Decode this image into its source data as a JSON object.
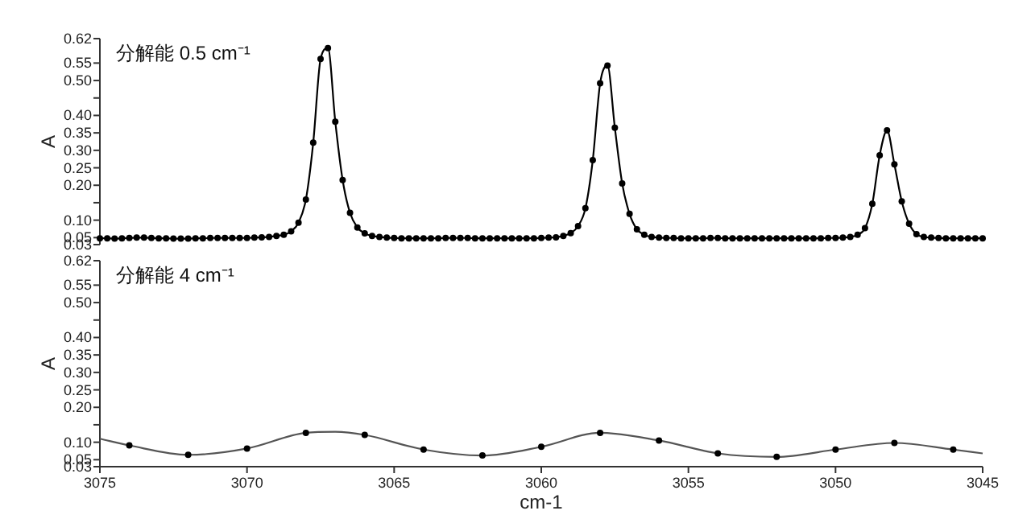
{
  "chart_data": [
    {
      "type": "line",
      "title": "分解能 0.5 cm⁻¹",
      "ylabel": "A",
      "xlim": [
        3075,
        3045
      ],
      "ylim": [
        0.03,
        0.62
      ],
      "tick_labels": "y",
      "marker": "circle",
      "yticks": [
        {
          "value": 0.03,
          "label": "0.03"
        },
        {
          "value": 0.05,
          "label": "0.05"
        },
        {
          "value": 0.1,
          "label": "0.10"
        },
        {
          "value": 0.15,
          "label": null
        },
        {
          "value": 0.2,
          "label": "0.20"
        },
        {
          "value": 0.25,
          "label": "0.25"
        },
        {
          "value": 0.3,
          "label": "0.30"
        },
        {
          "value": 0.35,
          "label": "0.35"
        },
        {
          "value": 0.4,
          "label": "0.40"
        },
        {
          "value": 0.45,
          "label": null
        },
        {
          "value": 0.5,
          "label": "0.50"
        },
        {
          "value": 0.55,
          "label": "0.55"
        },
        {
          "value": 0.62,
          "label": "0.62"
        }
      ],
      "series": [
        {
          "color": "#000000",
          "x": [
            3075,
            3074.75,
            3074.5,
            3074.25,
            3074,
            3073.75,
            3073.5,
            3073.25,
            3073,
            3072.75,
            3072.5,
            3072.25,
            3072,
            3071.75,
            3071.5,
            3071.25,
            3071,
            3070.75,
            3070.5,
            3070.25,
            3070,
            3069.75,
            3069.5,
            3069.25,
            3069,
            3068.75,
            3068.5,
            3068.25,
            3068,
            3067.75,
            3067.5,
            3067.25,
            3067,
            3066.75,
            3066.5,
            3066.25,
            3066,
            3065.75,
            3065.5,
            3065.25,
            3065,
            3064.75,
            3064.5,
            3064.25,
            3064,
            3063.75,
            3063.5,
            3063.25,
            3063,
            3062.75,
            3062.5,
            3062.25,
            3062,
            3061.75,
            3061.5,
            3061.25,
            3061,
            3060.75,
            3060.5,
            3060.25,
            3060,
            3059.75,
            3059.5,
            3059.25,
            3059,
            3058.75,
            3058.5,
            3058.25,
            3058,
            3057.75,
            3057.5,
            3057.25,
            3057,
            3056.75,
            3056.5,
            3056.25,
            3056,
            3055.75,
            3055.5,
            3055.25,
            3055,
            3054.75,
            3054.5,
            3054.25,
            3054,
            3053.75,
            3053.5,
            3053.25,
            3053,
            3052.75,
            3052.5,
            3052.25,
            3052,
            3051.75,
            3051.5,
            3051.25,
            3051,
            3050.75,
            3050.5,
            3050.25,
            3050,
            3049.75,
            3049.5,
            3049.25,
            3049,
            3048.75,
            3048.5,
            3048.25,
            3048,
            3047.75,
            3047.5,
            3047.25,
            3047,
            3046.75,
            3046.5,
            3046.25,
            3046,
            3045.75,
            3045.5,
            3045.25,
            3045
          ],
          "values": [
            0.048,
            0.048,
            0.047,
            0.048,
            0.049,
            0.05,
            0.05,
            0.049,
            0.048,
            0.048,
            0.047,
            0.047,
            0.047,
            0.048,
            0.048,
            0.049,
            0.049,
            0.049,
            0.049,
            0.049,
            0.049,
            0.05,
            0.051,
            0.052,
            0.055,
            0.058,
            0.068,
            0.093,
            0.159,
            0.322,
            0.562,
            0.593,
            0.382,
            0.215,
            0.121,
            0.079,
            0.062,
            0.055,
            0.052,
            0.05,
            0.049,
            0.048,
            0.048,
            0.048,
            0.048,
            0.048,
            0.048,
            0.049,
            0.049,
            0.049,
            0.049,
            0.048,
            0.048,
            0.048,
            0.048,
            0.048,
            0.048,
            0.048,
            0.048,
            0.048,
            0.049,
            0.05,
            0.051,
            0.055,
            0.063,
            0.083,
            0.134,
            0.272,
            0.492,
            0.543,
            0.365,
            0.205,
            0.118,
            0.074,
            0.058,
            0.052,
            0.05,
            0.049,
            0.049,
            0.048,
            0.048,
            0.048,
            0.048,
            0.049,
            0.049,
            0.048,
            0.048,
            0.048,
            0.048,
            0.048,
            0.048,
            0.048,
            0.048,
            0.048,
            0.048,
            0.048,
            0.048,
            0.048,
            0.048,
            0.049,
            0.049,
            0.05,
            0.052,
            0.058,
            0.077,
            0.147,
            0.286,
            0.357,
            0.26,
            0.154,
            0.09,
            0.06,
            0.052,
            0.05,
            0.049,
            0.048,
            0.048,
            0.048,
            0.048,
            0.048,
            0.048
          ]
        }
      ]
    },
    {
      "type": "line",
      "title": "分解能 4 cm⁻¹",
      "ylabel": "A",
      "xlabel": "cm-1",
      "xlim": [
        3075,
        3045
      ],
      "ylim": [
        0.03,
        0.62
      ],
      "xticks": [
        3075,
        3070,
        3065,
        3060,
        3055,
        3050,
        3045
      ],
      "yticks": [
        {
          "value": 0.03,
          "label": "0.03"
        },
        {
          "value": 0.05,
          "label": "0.05"
        },
        {
          "value": 0.1,
          "label": "0.10"
        },
        {
          "value": 0.15,
          "label": null
        },
        {
          "value": 0.2,
          "label": "0.20"
        },
        {
          "value": 0.25,
          "label": "0.25"
        },
        {
          "value": 0.3,
          "label": "0.30"
        },
        {
          "value": 0.35,
          "label": "0.35"
        },
        {
          "value": 0.4,
          "label": "0.40"
        },
        {
          "value": 0.45,
          "label": null
        },
        {
          "value": 0.5,
          "label": "0.50"
        },
        {
          "value": 0.55,
          "label": "0.55"
        },
        {
          "value": 0.62,
          "label": "0.62"
        }
      ],
      "series": [
        {
          "marker": "none",
          "color": "#555555",
          "x": [
            3075,
            3074,
            3072,
            3070,
            3068,
            3067,
            3066,
            3064,
            3062,
            3060,
            3058,
            3056,
            3054,
            3052,
            3050,
            3048,
            3046,
            3045
          ],
          "values": [
            0.11,
            0.091,
            0.064,
            0.082,
            0.127,
            0.13,
            0.121,
            0.079,
            0.062,
            0.087,
            0.127,
            0.105,
            0.068,
            0.058,
            0.079,
            0.098,
            0.079,
            0.068
          ]
        },
        {
          "type": "scatter",
          "marker": "circle",
          "color": "#000000",
          "x": [
            3074,
            3072,
            3070,
            3068,
            3066,
            3064,
            3062,
            3060,
            3058,
            3056,
            3054,
            3052,
            3050,
            3048,
            3046
          ],
          "values": [
            0.091,
            0.064,
            0.082,
            0.127,
            0.121,
            0.079,
            0.062,
            0.087,
            0.127,
            0.105,
            0.068,
            0.058,
            0.079,
            0.098,
            0.079
          ]
        }
      ]
    }
  ]
}
